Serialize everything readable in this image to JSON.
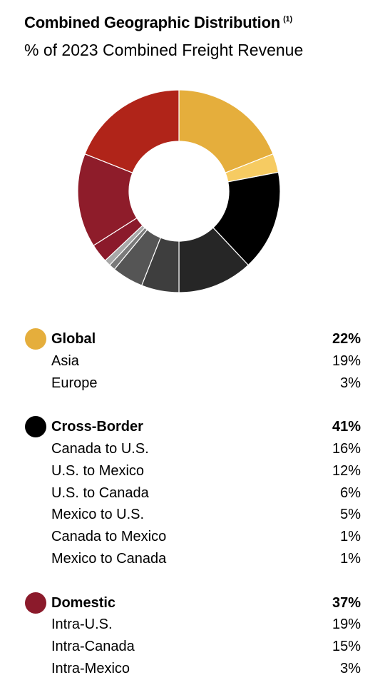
{
  "title": "Combined Geographic Distribution",
  "title_note": "(1)",
  "subtitle": "% of 2023 Combined Freight Revenue",
  "groups": [
    {
      "label": "Global",
      "value": "22%",
      "color": "#E5AE3C",
      "items": [
        {
          "label": "Asia",
          "value": "19%"
        },
        {
          "label": "Europe",
          "value": "3%"
        }
      ]
    },
    {
      "label": "Cross-Border",
      "value": "41%",
      "color": "#000000",
      "items": [
        {
          "label": "Canada to U.S.",
          "value": "16%"
        },
        {
          "label": "U.S. to Mexico",
          "value": "12%"
        },
        {
          "label": "U.S. to Canada",
          "value": "6%"
        },
        {
          "label": "Mexico to U.S.",
          "value": "5%"
        },
        {
          "label": "Canada to Mexico",
          "value": "1%"
        },
        {
          "label": "Mexico to Canada",
          "value": "1%"
        }
      ]
    },
    {
      "label": "Domestic",
      "value": "37%",
      "color": "#8B1A2B",
      "items": [
        {
          "label": "Intra-U.S.",
          "value": "19%"
        },
        {
          "label": "Intra-Canada",
          "value": "15%"
        },
        {
          "label": "Intra-Mexico",
          "value": "3%"
        }
      ]
    }
  ],
  "chart_data": {
    "type": "pie",
    "style": "donut",
    "labels": [
      "Asia",
      "Europe",
      "Canada to U.S.",
      "U.S. to Mexico",
      "U.S. to Canada",
      "Mexico to U.S.",
      "Canada to Mexico",
      "Mexico to Canada",
      "Intra-Mexico",
      "Intra-Canada",
      "Intra-U.S."
    ],
    "values": [
      19,
      3,
      16,
      12,
      6,
      5,
      1,
      1,
      3,
      15,
      19
    ],
    "colors": [
      "#E5AE3C",
      "#F6CB62",
      "#000000",
      "#262626",
      "#3E3E3E",
      "#555555",
      "#7A7A7A",
      "#A8A8A8",
      "#8B1A2B",
      "#8E1C2A",
      "#B02419"
    ],
    "start_angle_deg": 0,
    "direction": "clockwise"
  }
}
